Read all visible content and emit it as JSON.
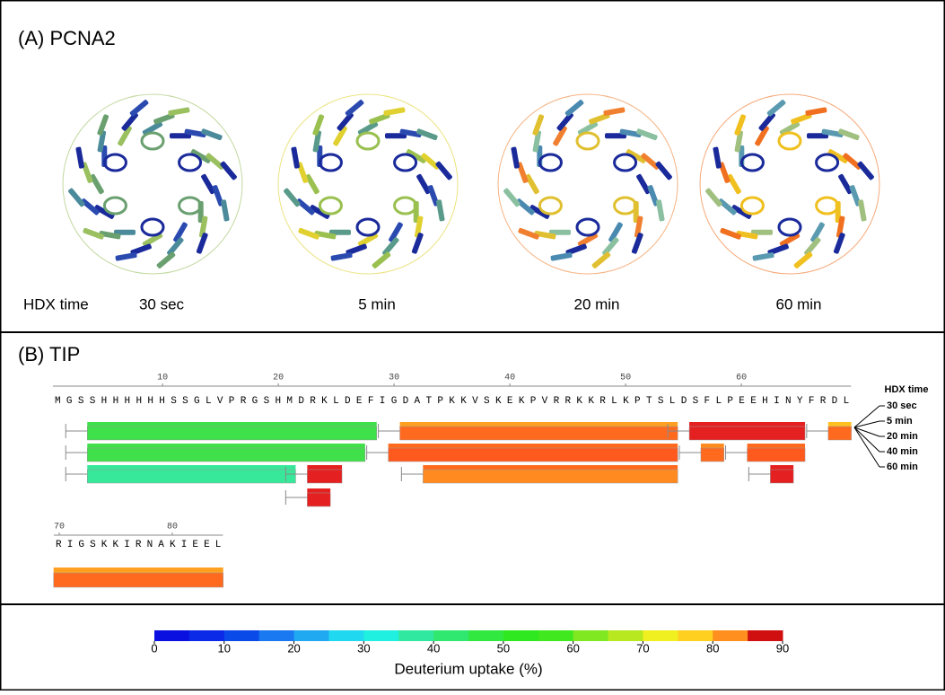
{
  "panel_a": {
    "title": "(A) PCNA2",
    "time_label": "HDX time",
    "times": [
      "30 sec",
      "5 min",
      "20 min",
      "60 min"
    ]
  },
  "panel_b": {
    "title": "(B) TIP",
    "line1": {
      "sequence": "MGSSHHHHHHSSGLVPRGSHMDRKLDEFIGDATPKKVSKEKPVRRKKRLKPTSLDSFLPEEHINYFRDL",
      "first_residue": 1,
      "residue_numbers": [
        10,
        20,
        30,
        40,
        50,
        60
      ],
      "peptides": [
        {
          "row": 0,
          "start": 4,
          "end": 28,
          "colors": [
            "#3fe04a",
            "#3fe04a"
          ]
        },
        {
          "row": 0,
          "start": 31,
          "end": 54,
          "colors": [
            "#ffa020",
            "#ff6a1e"
          ]
        },
        {
          "row": 0,
          "start": 56,
          "end": 65,
          "colors": [
            "#e52020",
            "#e52020"
          ]
        },
        {
          "row": 0,
          "start": 68,
          "end": 69,
          "colors": [
            "#ffc020",
            "#ff6a1e"
          ]
        },
        {
          "row": 1,
          "start": 4,
          "end": 27,
          "colors": [
            "#3fe04a",
            "#3fe04a"
          ]
        },
        {
          "row": 1,
          "start": 30,
          "end": 54,
          "colors": [
            "#ff6a1e",
            "#ff5a1e"
          ]
        },
        {
          "row": 1,
          "start": 57,
          "end": 58,
          "colors": [
            "#ff8a20",
            "#ff6a1e"
          ]
        },
        {
          "row": 1,
          "start": 61,
          "end": 65,
          "colors": [
            "#ff6a1e",
            "#ff5a1e"
          ]
        },
        {
          "row": 2,
          "start": 4,
          "end": 21,
          "colors": [
            "#38e89a",
            "#38e89a"
          ]
        },
        {
          "row": 2,
          "start": 23,
          "end": 25,
          "colors": [
            "#e52020",
            "#e52020"
          ]
        },
        {
          "row": 2,
          "start": 33,
          "end": 54,
          "colors": [
            "#ff6a1e",
            "#ff8a20"
          ]
        },
        {
          "row": 2,
          "start": 63,
          "end": 64,
          "colors": [
            "#e52020",
            "#e52020"
          ]
        },
        {
          "row": 3,
          "start": 23,
          "end": 24,
          "colors": [
            "#e52020",
            "#e52020"
          ]
        }
      ]
    },
    "line2": {
      "sequence": "RIGSKKIRNAKIEEL",
      "first_residue": 70,
      "residue_numbers": [
        70,
        80
      ],
      "peptides": [
        {
          "row": 0,
          "start": 70,
          "end": 84,
          "colors": [
            "#ffa020",
            "#ff6a1e"
          ]
        }
      ]
    },
    "legend_title": "HDX time",
    "legend_times": [
      "30 sec",
      "5 min",
      "20 min",
      "40 min",
      "60 min"
    ]
  },
  "colorbar": {
    "label": "Deuterium uptake (%)",
    "range": [
      0,
      90
    ],
    "ticks": [
      0,
      10,
      20,
      30,
      40,
      50,
      60,
      70,
      80,
      90
    ],
    "colors": [
      "#0a10e0",
      "#0a2ae8",
      "#0a4ae8",
      "#1a78f0",
      "#20a8f0",
      "#20d8f0",
      "#20f0e0",
      "#30e8a0",
      "#30e870",
      "#30e840",
      "#30e820",
      "#40e820",
      "#80e820",
      "#b8e820",
      "#f0f020",
      "#ffd020",
      "#ff9020",
      "#d01010"
    ]
  }
}
